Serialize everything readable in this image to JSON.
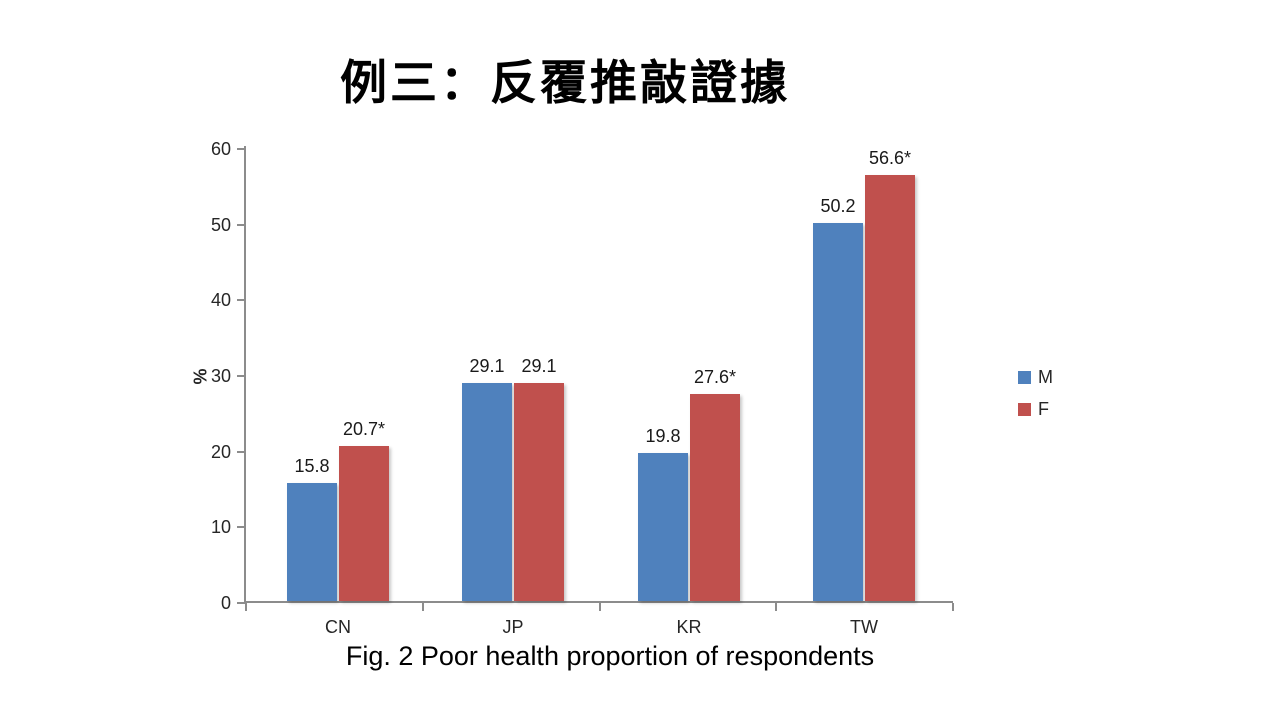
{
  "slide": {
    "title": "例三：反覆推敲證據",
    "caption": "Fig. 2 Poor health proportion of respondents"
  },
  "colors": {
    "male_series": "#4F81BD",
    "female_series": "#C0504D",
    "axis": "#8C8C8C",
    "text": "#262626"
  },
  "chart_data": {
    "type": "bar",
    "title": "Fig. 2 Poor health proportion of respondents",
    "categories": [
      "CN",
      "JP",
      "KR",
      "TW"
    ],
    "series": [
      {
        "name": "M",
        "color": "#4F81BD",
        "values": [
          15.8,
          29.1,
          19.8,
          50.2
        ],
        "labels": [
          "15.8",
          "29.1",
          "19.8",
          "50.2"
        ]
      },
      {
        "name": "F",
        "color": "#C0504D",
        "values": [
          20.7,
          29.1,
          27.6,
          56.6
        ],
        "labels": [
          "20.7*",
          "29.1",
          "27.6*",
          "56.6*"
        ]
      }
    ],
    "xlabel": "",
    "ylabel": "%",
    "ylim": [
      0,
      60
    ],
    "yticks": [
      0,
      10,
      20,
      30,
      40,
      50,
      60
    ],
    "grid": false,
    "legend_position": "right"
  }
}
